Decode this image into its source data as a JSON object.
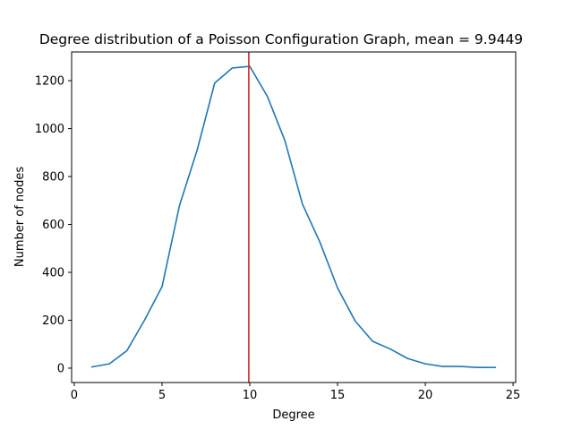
{
  "chart_data": {
    "type": "line",
    "title": "Degree distribution of a Poisson Configuration Graph, mean = 9.9449",
    "xlabel": "Degree",
    "ylabel": "Number of nodes",
    "xlim": [
      -0.15,
      25.15
    ],
    "ylim": [
      -60,
      1320
    ],
    "xticks": [
      0,
      5,
      10,
      15,
      20,
      25
    ],
    "yticks": [
      0,
      200,
      400,
      600,
      800,
      1000,
      1200
    ],
    "grid": false,
    "series": [
      {
        "color": "#1f77b4",
        "x": [
          1,
          2,
          3,
          4,
          5,
          6,
          7,
          8,
          9,
          10,
          11,
          12,
          13,
          14,
          15,
          16,
          17,
          18,
          19,
          20,
          21,
          22,
          23,
          24
        ],
        "values": [
          5,
          18,
          73,
          200,
          340,
          680,
          910,
          1190,
          1253,
          1260,
          1135,
          950,
          685,
          525,
          335,
          197,
          112,
          80,
          40,
          18,
          7,
          7,
          3,
          3
        ]
      }
    ],
    "vline": {
      "x": 9.9449,
      "color": "#d62728"
    }
  }
}
